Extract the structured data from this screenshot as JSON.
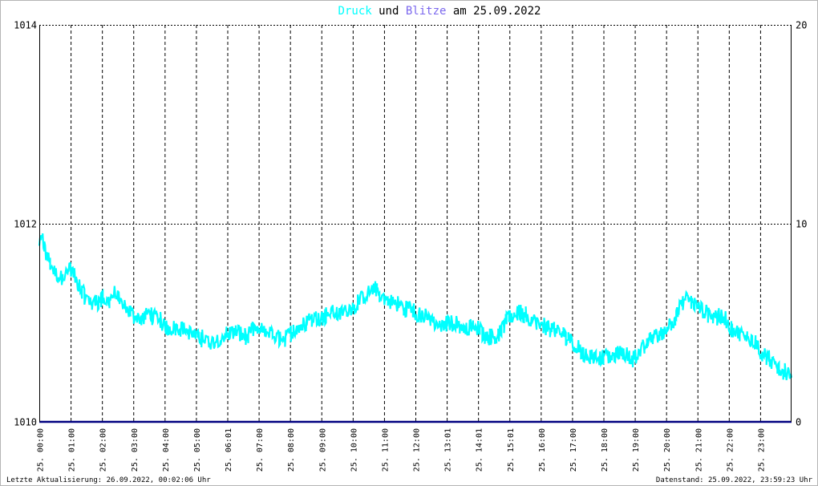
{
  "title": {
    "parts": [
      {
        "text": "Druck",
        "color": "#00ffff"
      },
      {
        "text": " und ",
        "color": "#000000"
      },
      {
        "text": "Blitze",
        "color": "#7b68ee"
      },
      {
        "text": " am 25.09.2022",
        "color": "#000000"
      }
    ]
  },
  "footer": {
    "left": "Letzte Aktualisierung: 26.09.2022, 00:02:06 Uhr",
    "right": "Datenstand: 25.09.2022, 23:59:23 Uhr"
  },
  "chart_data": {
    "type": "line",
    "x_unit": "hours since 25.09.2022 00:00",
    "xlim": [
      0,
      24
    ],
    "y_left": {
      "ylim": [
        1010,
        1014
      ],
      "ticks": [
        "1010",
        "1012",
        "1014"
      ]
    },
    "y_right": {
      "ylim": [
        0,
        20
      ],
      "ticks": [
        "0",
        "10",
        "20"
      ]
    },
    "grid": true,
    "x_tick_labels": [
      "25. 00:00",
      "25. 01:00",
      "25. 02:00",
      "25. 03:00",
      "25. 04:00",
      "25. 05:00",
      "25. 06:01",
      "25. 07:00",
      "25. 08:00",
      "25. 09:00",
      "25. 10:00",
      "25. 11:00",
      "25. 12:00",
      "25. 13:01",
      "25. 14:01",
      "25. 15:01",
      "25. 16:00",
      "25. 17:00",
      "25. 18:00",
      "25. 19:00",
      "25. 20:00",
      "25. 21:00",
      "25. 22:00",
      "25. 23:00"
    ],
    "x_tick_hours": [
      0,
      1,
      2,
      3,
      4,
      5,
      6,
      7,
      8,
      9,
      10,
      11,
      12,
      13,
      14,
      15,
      16,
      17,
      18,
      19,
      20,
      21,
      22,
      23
    ],
    "series": [
      {
        "name": "Druck",
        "axis": "left",
        "color": "#00ffff",
        "x": [
          0,
          0.1,
          0.2,
          0.35,
          0.5,
          0.7,
          0.9,
          1.0,
          1.15,
          1.3,
          1.5,
          1.7,
          1.9,
          2.0,
          2.2,
          2.4,
          2.5,
          2.7,
          2.9,
          3.1,
          3.3,
          3.5,
          3.7,
          3.9,
          4.0,
          4.2,
          4.5,
          4.8,
          5.0,
          5.2,
          5.5,
          5.8,
          6.0,
          6.3,
          6.6,
          6.9,
          7.0,
          7.3,
          7.6,
          7.9,
          8.0,
          8.3,
          8.5,
          8.7,
          9.0,
          9.3,
          9.6,
          9.9,
          10.0,
          10.3,
          10.5,
          10.7,
          11.0,
          11.3,
          11.6,
          11.9,
          12.0,
          12.3,
          12.6,
          12.9,
          13.0,
          13.3,
          13.6,
          13.9,
          14.0,
          14.3,
          14.6,
          14.8,
          15.0,
          15.3,
          15.6,
          15.9,
          16.0,
          16.3,
          16.6,
          16.9,
          17.0,
          17.3,
          17.6,
          17.9,
          18.0,
          18.3,
          18.6,
          18.9,
          19.0,
          19.3,
          19.6,
          19.9,
          20.0,
          20.3,
          20.5,
          20.7,
          21.0,
          21.3,
          21.6,
          21.9,
          22.0,
          22.3,
          22.6,
          22.9,
          23.0,
          23.2,
          23.4,
          23.6,
          23.8,
          23.98
        ],
        "y": [
          1011.75,
          1011.85,
          1011.7,
          1011.6,
          1011.5,
          1011.45,
          1011.5,
          1011.55,
          1011.45,
          1011.35,
          1011.25,
          1011.2,
          1011.2,
          1011.25,
          1011.2,
          1011.3,
          1011.25,
          1011.15,
          1011.1,
          1011.05,
          1011.05,
          1011.1,
          1011.05,
          1011.0,
          1010.95,
          1010.95,
          1010.95,
          1010.9,
          1010.85,
          1010.85,
          1010.8,
          1010.85,
          1010.9,
          1010.9,
          1010.85,
          1010.95,
          1010.9,
          1010.9,
          1010.85,
          1010.85,
          1010.9,
          1010.95,
          1011.0,
          1011.05,
          1011.05,
          1011.1,
          1011.1,
          1011.15,
          1011.15,
          1011.25,
          1011.3,
          1011.35,
          1011.25,
          1011.2,
          1011.15,
          1011.15,
          1011.1,
          1011.05,
          1011.0,
          1010.95,
          1011.0,
          1011.0,
          1010.95,
          1010.95,
          1010.95,
          1010.85,
          1010.85,
          1010.95,
          1011.05,
          1011.1,
          1011.05,
          1011.0,
          1010.95,
          1010.95,
          1010.9,
          1010.85,
          1010.8,
          1010.7,
          1010.65,
          1010.65,
          1010.65,
          1010.65,
          1010.7,
          1010.65,
          1010.65,
          1010.75,
          1010.85,
          1010.9,
          1010.95,
          1011.05,
          1011.2,
          1011.25,
          1011.15,
          1011.1,
          1011.05,
          1011.05,
          1010.95,
          1010.9,
          1010.85,
          1010.8,
          1010.7,
          1010.65,
          1010.6,
          1010.55,
          1010.5,
          1010.5
        ]
      },
      {
        "name": "Blitze",
        "axis": "right",
        "color": "#000080",
        "x": [
          0,
          24
        ],
        "y": [
          0,
          0
        ]
      }
    ]
  }
}
